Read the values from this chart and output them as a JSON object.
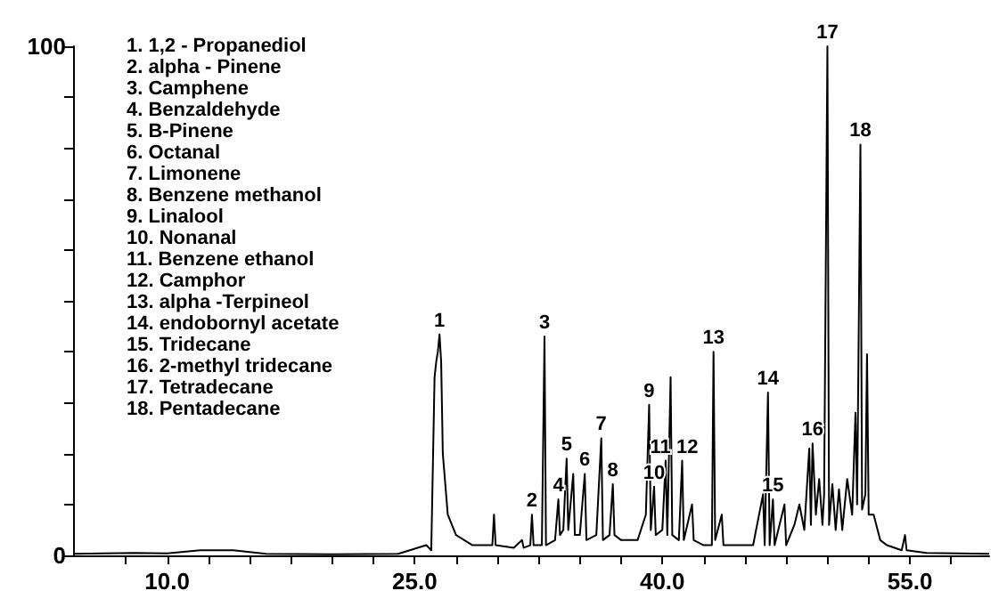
{
  "chart_data": {
    "type": "line",
    "x": [
      4.3,
      8,
      10,
      12,
      14,
      16,
      20,
      24,
      25.7,
      26.0,
      26.2,
      26.3,
      26.4,
      26.5,
      26.6,
      26.7,
      27.0,
      27.5,
      28.5,
      29.7,
      29.8,
      29.9,
      31,
      31.5,
      31.6,
      32.0,
      32.1,
      32.2,
      32.7,
      32.86,
      32.95,
      33.5,
      33.7,
      33.8,
      34.0,
      34.2,
      34.3,
      34.6,
      34.7,
      35.0,
      35.3,
      35.4,
      36.0,
      36.3,
      36.4,
      36.8,
      37.0,
      37.1,
      37.5,
      38.5,
      39.0,
      39.2,
      39.3,
      39.5,
      39.6,
      40.0,
      40.2,
      40.3,
      40.5,
      40.6,
      41.0,
      41.2,
      41.3,
      41.8,
      41.9,
      42.5,
      43.0,
      43.1,
      43.2,
      43.6,
      43.7,
      44.5,
      45.5,
      46.1,
      46.2,
      46.4,
      46.5,
      46.7,
      46.8,
      47.4,
      47.5,
      48.0,
      48.3,
      48.6,
      48.9,
      49.0,
      49.1,
      49.3,
      49.5,
      49.7,
      49.8,
      50.0,
      50.1,
      50.3,
      50.5,
      50.7,
      50.9,
      51.2,
      51.5,
      51.7,
      51.8,
      52.0,
      52.1,
      52.3,
      52.4,
      52.5,
      52.8,
      53.2,
      53.6,
      54.5,
      54.7,
      54.8,
      56,
      59.8
    ],
    "series": [
      {
        "color": "#000000",
        "values": [
          0.3,
          0.5,
          0.4,
          1,
          1,
          0.3,
          0.2,
          0.3,
          2,
          1,
          35,
          38,
          40,
          43.4,
          38,
          20,
          8,
          4,
          2,
          2,
          8,
          2,
          1.5,
          3,
          1.5,
          2,
          8,
          2,
          2,
          43,
          2,
          3,
          11,
          4,
          5,
          19,
          5,
          16,
          4,
          4,
          16,
          3,
          4,
          23,
          3,
          4,
          14,
          4,
          3,
          3,
          8,
          29.6,
          5,
          13.5,
          4,
          5,
          18.6,
          4,
          35,
          4,
          3,
          18.6,
          3,
          10,
          3,
          2,
          2,
          40,
          3,
          8,
          2,
          2,
          2,
          12,
          2,
          32,
          2,
          11,
          2,
          10,
          2,
          6,
          10,
          5,
          21,
          6,
          22,
          8,
          15,
          6,
          12,
          100,
          6,
          14,
          5,
          13,
          5,
          15,
          8,
          28,
          10,
          80.7,
          9,
          12,
          39.5,
          8,
          8,
          3,
          2,
          1,
          4,
          1,
          0.5,
          0.3
        ]
      }
    ],
    "xlim": [
      4.3,
      59.8
    ],
    "xticks": [
      {
        "value": 7.5,
        "label": null
      },
      {
        "value": 10,
        "label": "10.0"
      },
      {
        "value": 12.5,
        "label": null
      },
      {
        "value": 15,
        "label": null
      },
      {
        "value": 17.5,
        "label": null
      },
      {
        "value": 20,
        "label": null
      },
      {
        "value": 22.5,
        "label": null
      },
      {
        "value": 25,
        "label": "25.0"
      },
      {
        "value": 27.5,
        "label": null
      },
      {
        "value": 30,
        "label": null
      },
      {
        "value": 32.5,
        "label": null
      },
      {
        "value": 35,
        "label": null
      },
      {
        "value": 37.5,
        "label": null
      },
      {
        "value": 40,
        "label": "40.0"
      },
      {
        "value": 42.5,
        "label": null
      },
      {
        "value": 45,
        "label": null
      },
      {
        "value": 47.5,
        "label": null
      },
      {
        "value": 50,
        "label": null
      },
      {
        "value": 52.5,
        "label": null
      },
      {
        "value": 55,
        "label": "55.0"
      },
      {
        "value": 57.5,
        "label": null
      }
    ],
    "ylim": [
      0,
      100
    ],
    "yticks": [
      0,
      {
        "value": 10,
        "label": null
      },
      {
        "value": 20,
        "label": null
      },
      {
        "value": 30,
        "label": null
      },
      {
        "value": 40,
        "label": null
      },
      {
        "value": 50,
        "label": null
      },
      {
        "value": 60,
        "label": null
      },
      {
        "value": 70,
        "label": null
      },
      {
        "value": 80,
        "label": null
      },
      {
        "value": 90,
        "label": null
      },
      100
    ],
    "grid": false,
    "marker": "none",
    "line_style": "solid",
    "annotations": [
      "1. 1,2 - Propanediol",
      "2. alpha - Pinene",
      "3. Camphene",
      "4. Benzaldehyde",
      "5. B-Pinene",
      "6. Octanal",
      "7. Limonene",
      "8. Benzene methanol",
      "9. Linalool",
      "10. Nonanal",
      "11. Benzene ethanol",
      "12. Camphor",
      "13. alpha -Terpineol",
      "14. endobornyl acetate",
      "15. Tridecane",
      "16. 2-methyl tridecane",
      "17. Tetradecane",
      "18. Pentadecane",
      {
        "text": "1",
        "x": 26.5,
        "y": 43.4
      },
      {
        "text": "2",
        "x": 32.1,
        "y": 8
      },
      {
        "text": "3",
        "x": 32.86,
        "y": 43
      },
      {
        "text": "4",
        "x": 33.7,
        "y": 11
      },
      {
        "text": "5",
        "x": 34.2,
        "y": 19
      },
      {
        "text": "6",
        "x": 35.3,
        "y": 16
      },
      {
        "text": "7",
        "x": 36.3,
        "y": 23
      },
      {
        "text": "8",
        "x": 37.0,
        "y": 14
      },
      {
        "text": "9",
        "x": 39.2,
        "y": 29.6
      },
      {
        "text": "10",
        "x": 39.5,
        "y": 13.5
      },
      {
        "text": "11",
        "x": 40.2,
        "y": 18.6
      },
      {
        "text": "12",
        "x": 41.2,
        "y": 18.6
      },
      {
        "text": "13",
        "x": 43.1,
        "y": 40
      },
      {
        "text": "14",
        "x": 46.4,
        "y": 32
      },
      {
        "text": "15",
        "x": 46.7,
        "y": 11
      },
      {
        "text": "16",
        "x": 49.1,
        "y": 22
      },
      {
        "text": "17",
        "x": 50.0,
        "y": 100
      },
      {
        "text": "18",
        "x": 52.0,
        "y": 80.7
      }
    ]
  }
}
